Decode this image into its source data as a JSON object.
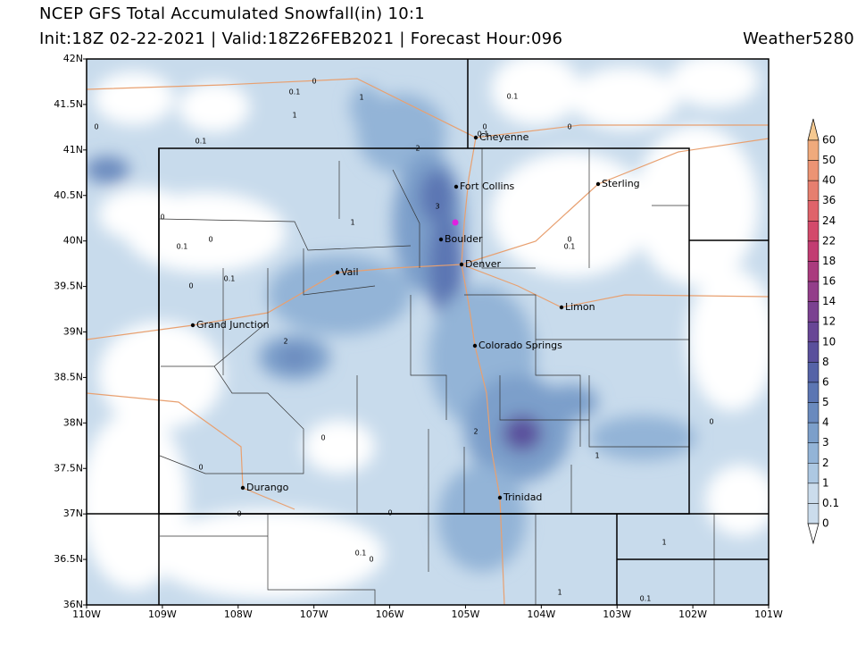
{
  "header": {
    "title": "NCEP GFS Total Accumulated Snowfall(in) 10:1",
    "subtitle": "Init:18Z 02-22-2021 | Valid:18Z26FEB2021 | Forecast Hour:096",
    "credit": "Weather5280"
  },
  "map": {
    "lat_labels": [
      "42N",
      "41.5N",
      "41N",
      "40.5N",
      "40N",
      "39.5N",
      "39N",
      "38.5N",
      "38N",
      "37.5N",
      "37N",
      "36.5N",
      "36N"
    ],
    "lon_labels": [
      "110W",
      "109W",
      "108W",
      "107W",
      "106W",
      "105W",
      "104W",
      "103W",
      "102W",
      "101W"
    ],
    "cities": [
      "Cheyenne",
      "Fort Collins",
      "Sterling",
      "Boulder",
      "Denver",
      "Vail",
      "Limon",
      "Grand Junction",
      "Colorado Springs",
      "Trinidad",
      "Durango"
    ],
    "contour_labels": [
      "0",
      "0.1",
      "1",
      "1",
      "0",
      "0.1",
      "2",
      "0",
      "0.1",
      "0.1",
      "0",
      "3",
      "1",
      "0",
      "0.1",
      "0",
      "0",
      "0.1",
      "0",
      "0.1",
      "2",
      "0",
      "2",
      "0",
      "1",
      "0",
      "0",
      "0",
      "0.1",
      "0",
      "1",
      "1",
      "0.1"
    ]
  },
  "colorbar": {
    "labels": [
      "60",
      "50",
      "40",
      "36",
      "24",
      "22",
      "18",
      "16",
      "14",
      "12",
      "10",
      "8",
      "6",
      "5",
      "4",
      "3",
      "2",
      "1",
      "0.1",
      "0"
    ],
    "colors": [
      "#f5c990",
      "#f0aa7c",
      "#ec9474",
      "#e67f6f",
      "#df636a",
      "#d34a6b",
      "#c23c72",
      "#aa3b7e",
      "#933e8a",
      "#7b4191",
      "#684696",
      "#5a509c",
      "#5563a7",
      "#5c76b3",
      "#6a8abe",
      "#7c9fca",
      "#93b4d7",
      "#adc8e2",
      "#cbdcec"
    ]
  }
}
